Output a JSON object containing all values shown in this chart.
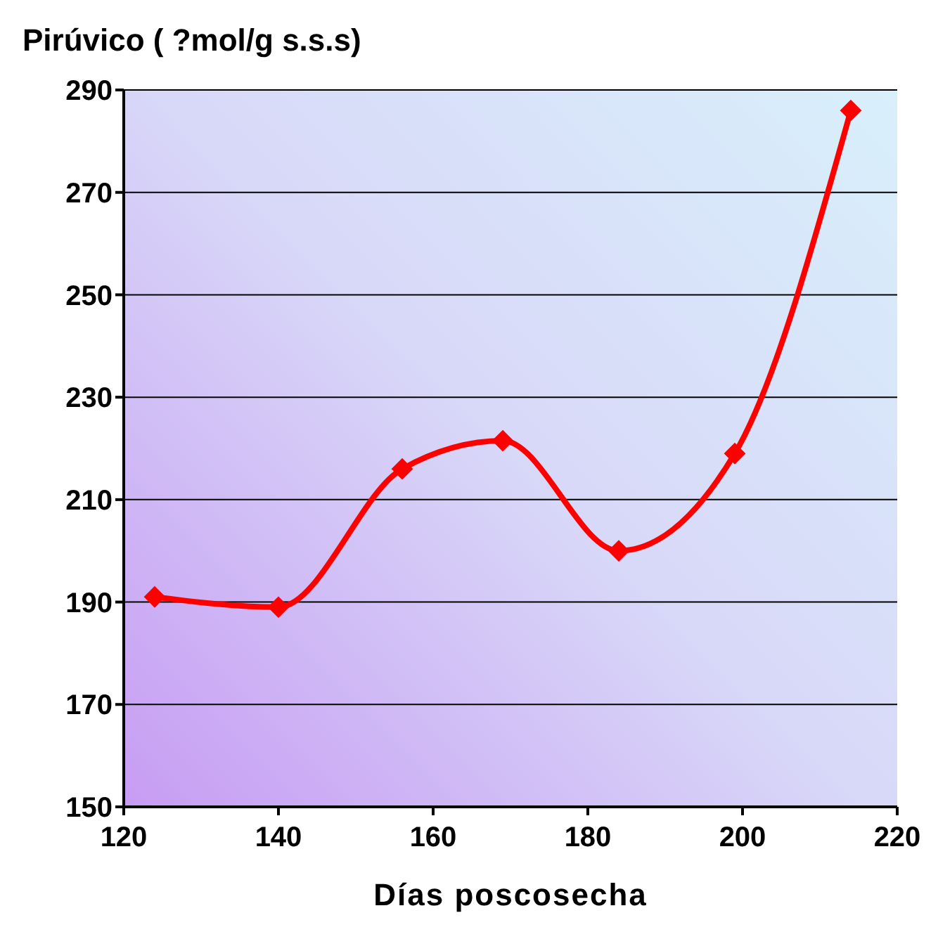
{
  "chart_data": {
    "type": "line",
    "title": "Pirúvico ( ?mol/g s.s.s)",
    "xlabel": "Días poscosecha",
    "x": [
      124,
      140,
      156,
      169,
      184,
      199,
      214
    ],
    "series": [
      {
        "color": "#ff0000",
        "values": [
          191,
          189,
          216,
          221.5,
          200,
          219,
          286
        ]
      }
    ],
    "xlim": [
      120,
      220
    ],
    "xticks": [
      120,
      140,
      160,
      180,
      200,
      220
    ],
    "ylim": [
      150,
      290
    ],
    "yticks": [
      150,
      170,
      190,
      210,
      230,
      250,
      270,
      290
    ],
    "grid": "y",
    "marker": "diamond",
    "line_style": "solid"
  }
}
